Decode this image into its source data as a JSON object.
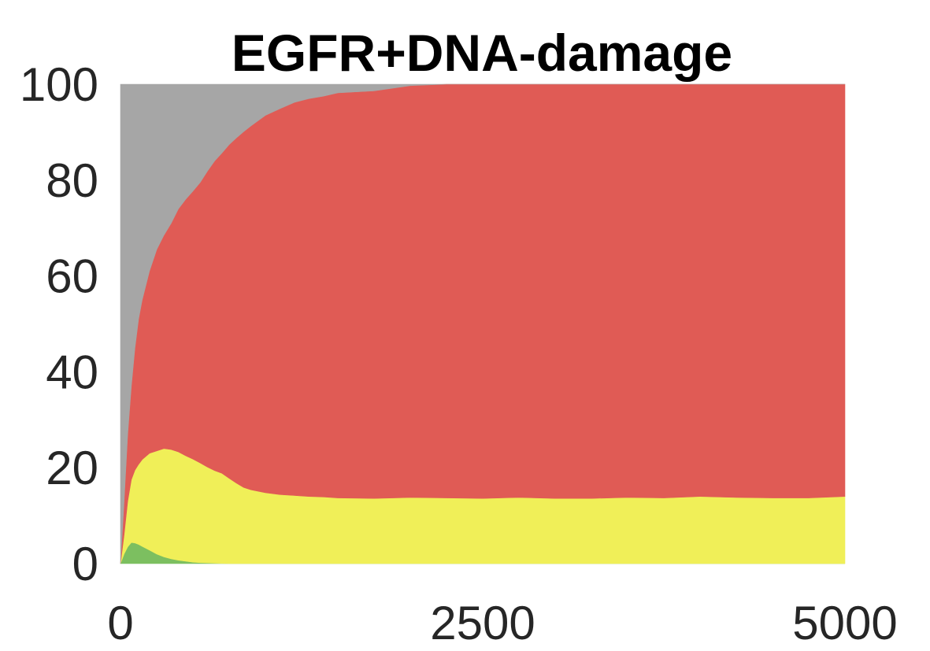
{
  "chart_data": {
    "type": "area",
    "stacked": true,
    "title": "EGFR+DNA-damage",
    "xlabel": "",
    "ylabel": "",
    "xlim": [
      0,
      5000
    ],
    "ylim": [
      0,
      100
    ],
    "xticks": [
      "0",
      "2500",
      "5000"
    ],
    "yticks": [
      "0",
      "20",
      "40",
      "60",
      "80",
      "100"
    ],
    "grid": false,
    "legend": "none",
    "x": [
      0,
      25,
      50,
      75,
      100,
      125,
      150,
      200,
      250,
      300,
      350,
      400,
      450,
      500,
      550,
      600,
      650,
      700,
      750,
      800,
      850,
      900,
      1000,
      1100,
      1200,
      1300,
      1400,
      1500,
      1750,
      2000,
      2250,
      2500,
      2750,
      3000,
      3250,
      3500,
      3750,
      4000,
      4250,
      4500,
      4750,
      5000
    ],
    "series": [
      {
        "color": "#7cbf60",
        "values": [
          0,
          2.0,
          3.5,
          4.4,
          4.3,
          4.0,
          3.6,
          2.8,
          2.0,
          1.4,
          1.0,
          0.7,
          0.5,
          0.3,
          0.2,
          0.15,
          0.1,
          0.05,
          0,
          0,
          0,
          0,
          0,
          0,
          0,
          0,
          0,
          0,
          0,
          0,
          0,
          0,
          0,
          0,
          0,
          0,
          0,
          0,
          0,
          0,
          0,
          0
        ]
      },
      {
        "color": "#f0ef58",
        "values": [
          0,
          4.0,
          9.5,
          13.1,
          15.2,
          16.7,
          18.1,
          20.2,
          21.5,
          22.6,
          22.8,
          22.6,
          22.0,
          21.5,
          20.8,
          20.0,
          19.3,
          18.8,
          17.8,
          16.8,
          15.9,
          15.4,
          14.8,
          14.4,
          14.2,
          14.0,
          13.9,
          13.7,
          13.6,
          13.8,
          13.7,
          13.6,
          13.8,
          13.6,
          13.6,
          13.8,
          13.7,
          14.0,
          13.8,
          13.7,
          13.7,
          14.0
        ]
      },
      {
        "color": "#e05b55",
        "values": [
          0,
          7.0,
          14.0,
          19.5,
          25.5,
          30.3,
          33.3,
          38.0,
          42.0,
          44.5,
          47.2,
          50.7,
          53.5,
          55.9,
          58.5,
          61.7,
          64.6,
          66.8,
          69.6,
          72.0,
          74.2,
          75.9,
          78.7,
          80.5,
          82.0,
          83.0,
          83.6,
          84.5,
          85.0,
          85.9,
          86.3,
          86.4,
          86.2,
          86.4,
          86.4,
          86.2,
          86.3,
          86.0,
          86.2,
          86.3,
          86.3,
          86.0
        ]
      },
      {
        "color": "#a6a6a6",
        "values": [
          100,
          87.0,
          73.0,
          63.0,
          55.0,
          49.0,
          45.0,
          39.0,
          34.5,
          31.5,
          29.0,
          26.0,
          24.0,
          22.3,
          20.5,
          18.15,
          16.0,
          14.35,
          12.6,
          11.2,
          9.9,
          8.7,
          6.5,
          5.1,
          3.8,
          3.0,
          2.5,
          1.8,
          1.4,
          0.3,
          0,
          0,
          0,
          0,
          0,
          0,
          0,
          0,
          0,
          0,
          0,
          0
        ]
      }
    ]
  }
}
